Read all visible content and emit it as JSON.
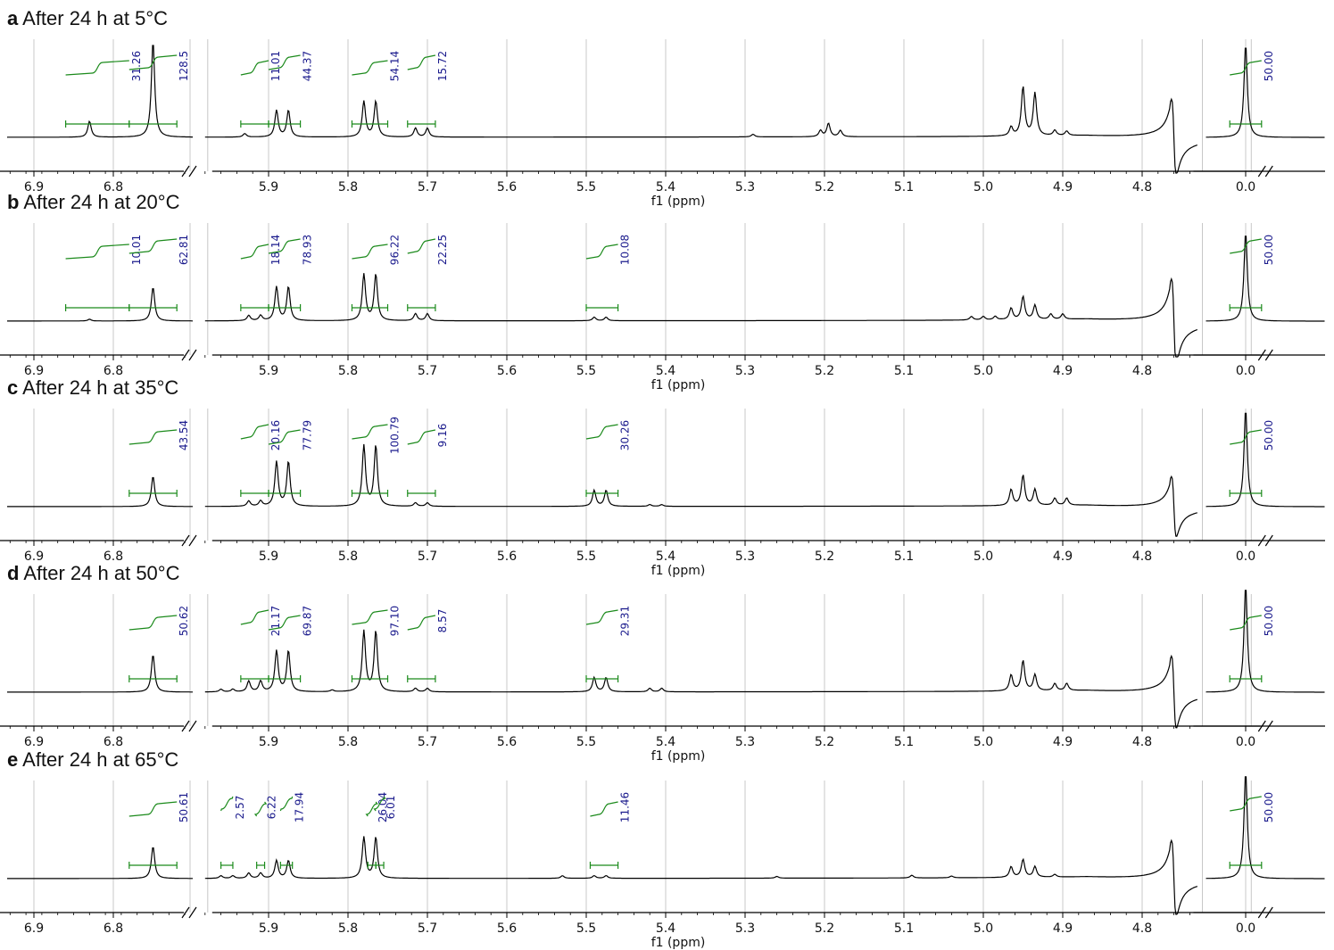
{
  "chart_data": {
    "type": "line",
    "x_unit": "ppm",
    "x_axis_reversed": true,
    "x_axis_breaks": [
      [
        6.7,
        5.98
      ],
      [
        4.73,
        0.05
      ]
    ],
    "grid": "vertical lines at ticks",
    "colors": {
      "spectrum": "#000000",
      "integral": "#1b8a1b",
      "integral_label": "#1a1a8c",
      "grid": "#c8c8c8"
    },
    "panels": [
      {
        "letter": "a",
        "title": "After 24 h at 5°C",
        "xlabel": "f1 (ppm)",
        "tick_labels": [
          "6.9",
          "6.8",
          "5.9",
          "5.8",
          "5.7",
          "5.6",
          "5.5",
          "5.4",
          "5.3",
          "5.2",
          "5.1",
          "5.0",
          "4.9",
          "4.8",
          "0.0"
        ],
        "peaks_ppm": [
          6.83,
          6.75,
          5.93,
          5.89,
          5.875,
          5.78,
          5.765,
          5.715,
          5.7,
          5.29,
          5.205,
          5.195,
          5.18,
          4.965,
          4.95,
          4.935,
          4.91,
          4.895,
          4.76,
          0.0
        ],
        "integrals": [
          {
            "range": [
              6.86,
              6.78
            ],
            "value": "31.26"
          },
          {
            "range": [
              6.78,
              6.72
            ],
            "value": "128.5"
          },
          {
            "range": [
              5.935,
              5.9
            ],
            "value": "11.01"
          },
          {
            "range": [
              5.9,
              5.86
            ],
            "value": "44.37"
          },
          {
            "range": [
              5.795,
              5.75
            ],
            "value": "54.14"
          },
          {
            "range": [
              5.725,
              5.69
            ],
            "value": "15.72"
          },
          {
            "range": [
              0.02,
              -0.02
            ],
            "value": "50.00"
          }
        ]
      },
      {
        "letter": "b",
        "title": "After 24 h at 20°C",
        "xlabel": "f1 (ppm)",
        "tick_labels": [
          "6.9",
          "6.8",
          "5.9",
          "5.8",
          "5.7",
          "5.6",
          "5.5",
          "5.4",
          "5.3",
          "5.2",
          "5.1",
          "5.0",
          "4.9",
          "4.8",
          "0.0"
        ],
        "peaks_ppm": [
          6.83,
          6.75,
          5.925,
          5.91,
          5.89,
          5.875,
          5.78,
          5.765,
          5.715,
          5.7,
          5.49,
          5.475,
          5.015,
          5.0,
          4.985,
          4.965,
          4.95,
          4.935,
          4.915,
          4.9,
          4.76,
          0.0
        ],
        "integrals": [
          {
            "range": [
              6.86,
              6.78
            ],
            "value": "10.01"
          },
          {
            "range": [
              6.78,
              6.72
            ],
            "value": "62.81"
          },
          {
            "range": [
              5.935,
              5.9
            ],
            "value": "18.14"
          },
          {
            "range": [
              5.9,
              5.86
            ],
            "value": "78.93"
          },
          {
            "range": [
              5.795,
              5.75
            ],
            "value": "96.22"
          },
          {
            "range": [
              5.725,
              5.69
            ],
            "value": "22.25"
          },
          {
            "range": [
              5.5,
              5.46
            ],
            "value": "10.08"
          },
          {
            "range": [
              0.02,
              -0.02
            ],
            "value": "50.00"
          }
        ]
      },
      {
        "letter": "c",
        "title": "After 24 h at 35°C",
        "xlabel": "f1 (ppm)",
        "tick_labels": [
          "6.9",
          "6.8",
          "5.9",
          "5.8",
          "5.7",
          "5.6",
          "5.5",
          "5.4",
          "5.3",
          "5.2",
          "5.1",
          "5.0",
          "4.9",
          "4.8",
          "0.0"
        ],
        "peaks_ppm": [
          6.75,
          5.925,
          5.91,
          5.89,
          5.875,
          5.78,
          5.765,
          5.715,
          5.7,
          5.49,
          5.475,
          5.42,
          5.405,
          4.965,
          4.95,
          4.935,
          4.91,
          4.895,
          4.76,
          0.0
        ],
        "integrals": [
          {
            "range": [
              6.78,
              6.72
            ],
            "value": "43.54"
          },
          {
            "range": [
              5.935,
              5.9
            ],
            "value": "20.16"
          },
          {
            "range": [
              5.9,
              5.86
            ],
            "value": "77.79"
          },
          {
            "range": [
              5.795,
              5.75
            ],
            "value": "100.79"
          },
          {
            "range": [
              5.725,
              5.69
            ],
            "value": "9.16"
          },
          {
            "range": [
              5.5,
              5.46
            ],
            "value": "30.26"
          },
          {
            "range": [
              0.02,
              -0.02
            ],
            "value": "50.00"
          }
        ]
      },
      {
        "letter": "d",
        "title": "After 24 h at 50°C",
        "xlabel": "f1 (ppm)",
        "tick_labels": [
          "6.9",
          "6.8",
          "5.9",
          "5.8",
          "5.7",
          "5.6",
          "5.5",
          "5.4",
          "5.3",
          "5.2",
          "5.1",
          "5.0",
          "4.9",
          "4.8",
          "0.0"
        ],
        "peaks_ppm": [
          6.75,
          5.96,
          5.945,
          5.925,
          5.91,
          5.89,
          5.875,
          5.82,
          5.78,
          5.765,
          5.715,
          5.7,
          5.49,
          5.475,
          5.42,
          5.405,
          4.965,
          4.95,
          4.935,
          4.91,
          4.895,
          4.76,
          0.0
        ],
        "integrals": [
          {
            "range": [
              6.78,
              6.72
            ],
            "value": "50.62"
          },
          {
            "range": [
              5.935,
              5.9
            ],
            "value": "21.17"
          },
          {
            "range": [
              5.9,
              5.86
            ],
            "value": "69.87"
          },
          {
            "range": [
              5.795,
              5.75
            ],
            "value": "97.10"
          },
          {
            "range": [
              5.725,
              5.69
            ],
            "value": "8.57"
          },
          {
            "range": [
              5.5,
              5.46
            ],
            "value": "29.31"
          },
          {
            "range": [
              0.02,
              -0.02
            ],
            "value": "50.00"
          }
        ]
      },
      {
        "letter": "e",
        "title": "After 24 h at 65°C",
        "xlabel": "f1 (ppm)",
        "tick_labels": [
          "6.9",
          "6.8",
          "5.9",
          "5.8",
          "5.7",
          "5.6",
          "5.5",
          "5.4",
          "5.3",
          "5.2",
          "5.1",
          "5.0",
          "4.9",
          "4.8",
          "0.0"
        ],
        "peaks_ppm": [
          6.75,
          5.96,
          5.945,
          5.925,
          5.91,
          5.89,
          5.875,
          5.78,
          5.765,
          5.53,
          5.49,
          5.475,
          5.26,
          5.09,
          5.04,
          4.965,
          4.95,
          4.935,
          4.91,
          4.76,
          0.0
        ],
        "integrals": [
          {
            "range": [
              6.78,
              6.72
            ],
            "value": "50.61"
          },
          {
            "range": [
              5.96,
              5.945
            ],
            "value": "2.57"
          },
          {
            "range": [
              5.915,
              5.905
            ],
            "value": "6.22"
          },
          {
            "range": [
              5.885,
              5.87
            ],
            "value": "17.94"
          },
          {
            "range": [
              5.775,
              5.765
            ],
            "value": "26.04"
          },
          {
            "range": [
              5.765,
              5.755
            ],
            "value": "6.01"
          },
          {
            "range": [
              5.495,
              5.46
            ],
            "value": "11.46"
          },
          {
            "range": [
              0.02,
              -0.02
            ],
            "value": "50.00"
          }
        ]
      }
    ]
  }
}
